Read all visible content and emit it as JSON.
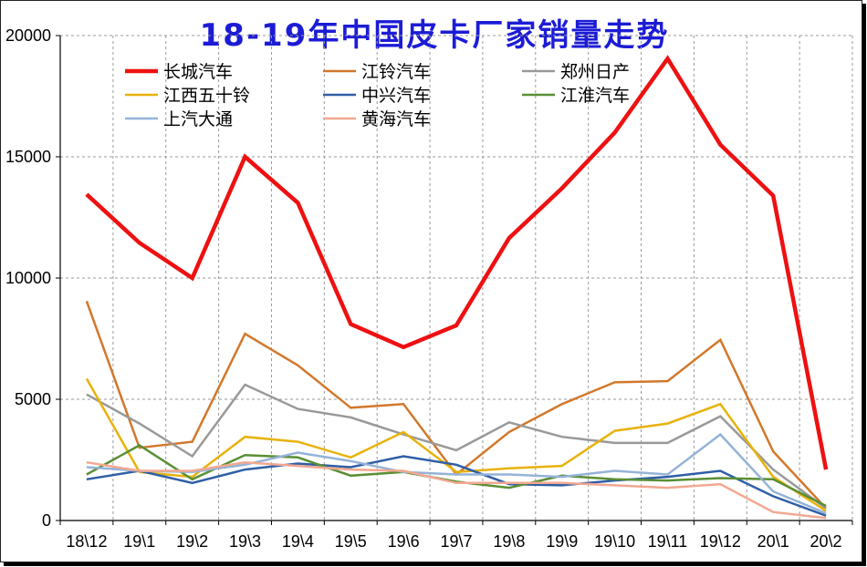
{
  "chart_data": {
    "type": "line",
    "title": "18-19年中国皮卡厂家销量走势",
    "xlabel": "",
    "ylabel": "",
    "categories": [
      "18\\12",
      "19\\1",
      "19\\2",
      "19\\3",
      "19\\4",
      "19\\5",
      "19\\6",
      "19\\7",
      "19\\8",
      "19\\9",
      "19\\10",
      "19\\11",
      "19\\12",
      "20\\1",
      "20\\2"
    ],
    "ylim": [
      0,
      20000
    ],
    "yticks": [
      0,
      5000,
      10000,
      15000,
      20000
    ],
    "grid": true,
    "legend_position": "top",
    "series": [
      {
        "name": "长城汽车",
        "color": "#ee1111",
        "width": 4.5,
        "values": [
          13450,
          11450,
          10000,
          15000,
          13100,
          8100,
          7150,
          8050,
          11650,
          13700,
          16000,
          19050,
          15500,
          13400,
          2100
        ]
      },
      {
        "name": "江铃汽车",
        "color": "#d2782c",
        "width": 2.5,
        "values": [
          9050,
          3000,
          3250,
          7700,
          6400,
          4650,
          4800,
          1900,
          3650,
          4800,
          5700,
          5750,
          7450,
          2850,
          500
        ]
      },
      {
        "name": "郑州日产",
        "color": "#999999",
        "width": 2.5,
        "values": [
          5200,
          4000,
          2650,
          5600,
          4600,
          4250,
          3550,
          2900,
          4050,
          3450,
          3200,
          3200,
          4300,
          2100,
          500
        ]
      },
      {
        "name": "江西五十铃",
        "color": "#e8b20a",
        "width": 2.5,
        "values": [
          5850,
          2000,
          1800,
          3450,
          3250,
          2600,
          3650,
          2000,
          2150,
          2250,
          3700,
          4000,
          4800,
          1800,
          400
        ]
      },
      {
        "name": "中兴汽车",
        "color": "#2f5fa6",
        "width": 2.5,
        "values": [
          1700,
          2050,
          1550,
          2100,
          2350,
          2200,
          2650,
          2300,
          1500,
          1450,
          1650,
          1800,
          2050,
          1000,
          200
        ]
      },
      {
        "name": "江淮汽车",
        "color": "#5a8f35",
        "width": 2.5,
        "values": [
          1900,
          3100,
          1700,
          2700,
          2600,
          1850,
          2000,
          1600,
          1350,
          1850,
          1700,
          1650,
          1750,
          1700,
          600
        ]
      },
      {
        "name": "上汽大通",
        "color": "#95b3d7",
        "width": 2.5,
        "values": [
          2200,
          2050,
          2000,
          2300,
          2800,
          2450,
          2000,
          1900,
          1900,
          1800,
          2050,
          1900,
          3550,
          1200,
          300
        ]
      },
      {
        "name": "黄海汽车",
        "color": "#f2a891",
        "width": 2.5,
        "values": [
          2400,
          2050,
          2050,
          2400,
          2250,
          2100,
          2050,
          1550,
          1550,
          1550,
          1450,
          1350,
          1500,
          350,
          100
        ]
      }
    ]
  }
}
